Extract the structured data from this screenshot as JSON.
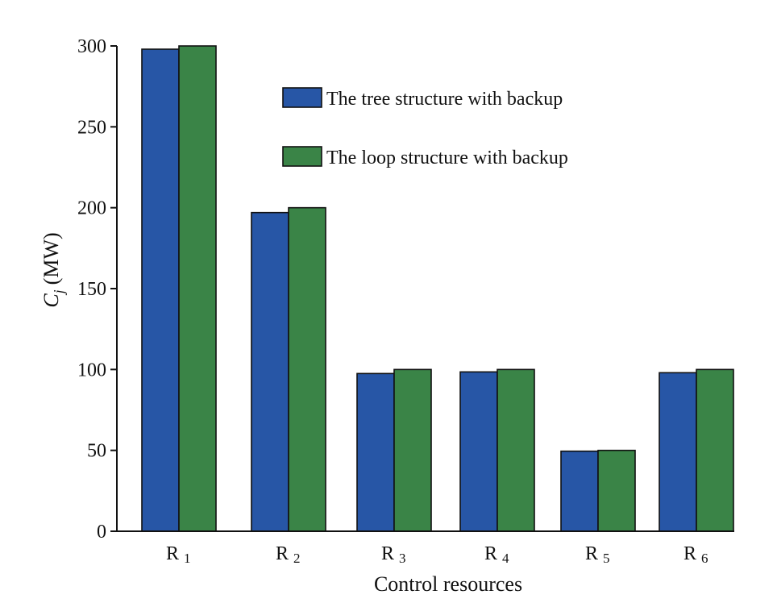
{
  "chart_data": {
    "type": "bar",
    "categories": [
      {
        "main": "R",
        "sub": "1"
      },
      {
        "main": "R",
        "sub": "2"
      },
      {
        "main": "R",
        "sub": "3"
      },
      {
        "main": "R",
        "sub": "4"
      },
      {
        "main": "R",
        "sub": "5"
      },
      {
        "main": "R",
        "sub": "6"
      }
    ],
    "series": [
      {
        "name": "The tree structure with backup",
        "color": "#2756a6",
        "values": [
          298,
          197,
          97.5,
          98.5,
          49.5,
          98
        ]
      },
      {
        "name": "The loop structure with backup",
        "color": "#3a8447",
        "values": [
          300,
          200,
          100,
          100,
          50,
          100
        ]
      }
    ],
    "xlabel": "Control resources",
    "ylabel": {
      "symbol": "C",
      "subscript": "j",
      "unit": "(MW)"
    },
    "ylim": [
      0,
      300
    ],
    "yticks": [
      0,
      50,
      100,
      150,
      200,
      250,
      300
    ],
    "grid": false,
    "legend_position": "top-right"
  }
}
